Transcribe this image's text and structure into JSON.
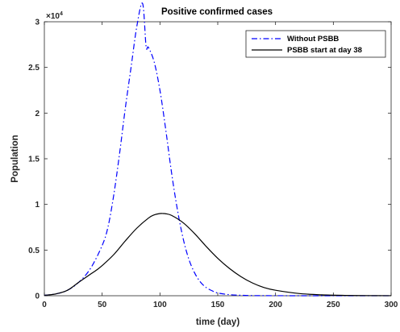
{
  "chart_data": {
    "type": "line",
    "title": "Positive confirmed cases",
    "xlabel": "time (day)",
    "ylabel": "Population",
    "xlim": [
      0,
      300
    ],
    "ylim": [
      0,
      3
    ],
    "y_multiplier_base": "×10",
    "y_multiplier_exponent": "4",
    "x_ticks": [
      0,
      50,
      100,
      150,
      200,
      250,
      300
    ],
    "x_tick_labels": [
      "0",
      "50",
      "100",
      "150",
      "200",
      "250",
      "300"
    ],
    "y_ticks": [
      0,
      0.5,
      1,
      1.5,
      2,
      2.5,
      3
    ],
    "y_tick_labels": [
      "0",
      "0.5",
      "1",
      "1.5",
      "2",
      "2.5",
      "3"
    ],
    "grid": false,
    "legend_position": "top-right",
    "series": [
      {
        "name": "Without PSBB",
        "color": "#0000ff",
        "line_style": "dash-dot",
        "x": [
          0,
          10,
          20,
          30,
          40,
          50,
          55,
          60,
          65,
          70,
          75,
          80,
          85,
          88,
          90,
          95,
          100,
          105,
          110,
          115,
          120,
          125,
          130,
          135,
          140,
          145,
          150,
          160,
          170,
          180,
          200,
          250,
          300
        ],
        "y": [
          0.005,
          0.02,
          0.06,
          0.15,
          0.3,
          0.55,
          0.75,
          1.1,
          1.55,
          2.05,
          2.5,
          2.95,
          3.2,
          2.73,
          2.72,
          2.56,
          2.25,
          1.82,
          1.35,
          0.95,
          0.63,
          0.4,
          0.25,
          0.15,
          0.09,
          0.055,
          0.03,
          0.012,
          0.005,
          0.002,
          0.0005,
          0,
          0
        ]
      },
      {
        "name": "PSBB start at day 38",
        "color": "#000000",
        "line_style": "solid",
        "x": [
          0,
          10,
          20,
          30,
          38,
          45,
          50,
          60,
          70,
          80,
          90,
          95,
          100,
          103,
          105,
          110,
          120,
          130,
          140,
          150,
          160,
          170,
          180,
          190,
          200,
          220,
          240,
          260,
          280,
          300
        ],
        "y": [
          0.005,
          0.02,
          0.06,
          0.15,
          0.22,
          0.28,
          0.33,
          0.45,
          0.6,
          0.74,
          0.85,
          0.885,
          0.9,
          0.9,
          0.898,
          0.88,
          0.8,
          0.68,
          0.54,
          0.41,
          0.3,
          0.21,
          0.14,
          0.09,
          0.06,
          0.025,
          0.01,
          0.004,
          0.0015,
          0.0005
        ]
      }
    ]
  }
}
